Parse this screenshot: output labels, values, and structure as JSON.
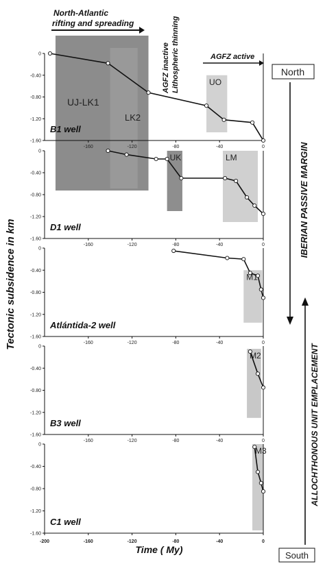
{
  "chart_data": {
    "type": "line",
    "xlabel": "Time ( My)",
    "ylabel": "Tectonic subsidence in km",
    "xlim": [
      -200,
      0
    ],
    "ylim": [
      -1.6,
      0
    ],
    "x_ticks": [
      "-160",
      "-120",
      "-80",
      "-40",
      "0"
    ],
    "y_ticks": [
      "0",
      "-0.40",
      "-0.80",
      "-1.20",
      "-1.60"
    ],
    "bottom_x_ticks": [
      "-200",
      "-160",
      "-120",
      "-80",
      "-40",
      "0"
    ],
    "annotations": {
      "north_atlantic": [
        "North-Atlantic",
        "rifting and spreading"
      ],
      "agfz_inactive": [
        "AGFZ inactive",
        "Lithospheric thinning"
      ],
      "agfz_active": "AGFZ active",
      "iberian": "IBERIAN PASSIVE MARGIN",
      "allochthonous": "ALLOCHTHONOUS  UNIT EMPLACEMENT",
      "north": "North",
      "south": "South"
    },
    "panels": [
      {
        "well": "B1 well",
        "series": {
          "x": [
            -195,
            -142,
            -105,
            -52,
            -36,
            -10,
            0
          ],
          "y": [
            0,
            -0.18,
            -0.72,
            -0.96,
            -1.22,
            -1.27,
            -1.6
          ]
        },
        "boxes": [
          {
            "label": "UO",
            "x0": -52,
            "x1": -33,
            "y0": -0.4,
            "y1": -1.45
          }
        ]
      },
      {
        "well": "D1 well",
        "series": {
          "x": [
            -142,
            -125,
            -98,
            -88,
            -75,
            -35,
            -25,
            -15,
            -8,
            0
          ],
          "y": [
            0,
            -0.07,
            -0.15,
            -0.15,
            -0.5,
            -0.5,
            -0.55,
            -0.85,
            -1.0,
            -1.15
          ]
        },
        "boxes": [
          {
            "label": "UK",
            "x0": -88,
            "x1": -74,
            "y0": 0,
            "y1": -1.1
          },
          {
            "label": "LM",
            "x0": -37,
            "x1": -5,
            "y0": 0,
            "y1": -1.3
          }
        ]
      },
      {
        "well": "Atlántida-2 well",
        "series": {
          "x": [
            -82,
            -33,
            -18,
            -12,
            -5,
            -2,
            0
          ],
          "y": [
            -0.05,
            -0.18,
            -0.2,
            -0.45,
            -0.5,
            -0.75,
            -0.9
          ]
        },
        "boxes": [
          {
            "label": "M1",
            "x0": -18,
            "x1": -1,
            "y0": -0.4,
            "y1": -1.35
          }
        ]
      },
      {
        "well": "B3 well",
        "series": {
          "x": [
            -12,
            -5,
            0
          ],
          "y": [
            -0.1,
            -0.5,
            -0.75
          ]
        },
        "boxes": [
          {
            "label": "M2",
            "x0": -15,
            "x1": -2,
            "y0": -0.05,
            "y1": -1.3
          }
        ]
      },
      {
        "well": "C1 well",
        "series": {
          "x": [
            -8,
            -5,
            -2,
            0
          ],
          "y": [
            -0.05,
            -0.5,
            -0.7,
            -0.85
          ]
        },
        "boxes": [
          {
            "label": "M3",
            "x0": -10,
            "x1": 0,
            "y0": 0,
            "y1": -1.55
          }
        ]
      }
    ],
    "rift_box": {
      "labels": [
        "UJ-LK1",
        "LK2"
      ],
      "x0": -190,
      "x1": -105
    }
  }
}
